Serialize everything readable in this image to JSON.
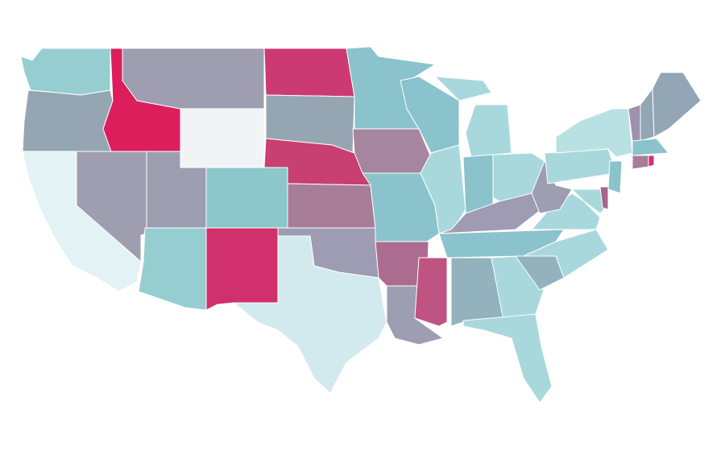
{
  "map": {
    "regions": [
      {
        "color": "#96cdd1"
      },
      {
        "color": "#95a6b2"
      },
      {
        "color": "#e3f3f5"
      },
      {
        "color": "#9e9eb0"
      },
      {
        "color": "#dc1e5c"
      },
      {
        "color": "#9e9eb0"
      },
      {
        "color": "#f2f3f5"
      },
      {
        "color": "#9d9fb1"
      },
      {
        "color": "#96cdd1"
      },
      {
        "color": "#8bc7cb"
      },
      {
        "color": "#d0306c"
      },
      {
        "color": "#cb3a71"
      },
      {
        "color": "#96a5b2"
      },
      {
        "color": "#c7406f"
      },
      {
        "color": "#a77d98"
      },
      {
        "color": "#9e9cb2"
      },
      {
        "color": "#d2eaed"
      },
      {
        "color": "#8ac3cc"
      },
      {
        "color": "#a6869f"
      },
      {
        "color": "#8ac3cc"
      },
      {
        "color": "#ac6c90"
      },
      {
        "color": "#9e9eb2"
      },
      {
        "color": "#bf5381"
      },
      {
        "color": "#8ac3cc"
      },
      {
        "color": "#a9d8dc"
      },
      {
        "color": "#a9d8dc"
      },
      {
        "color": "#8ac3cc"
      },
      {
        "color": "#a9d8dc"
      },
      {
        "color": "#9e9bb3"
      },
      {
        "color": "#8ac3cc"
      },
      {
        "color": "#92b3be"
      },
      {
        "color": "#a9d8dc"
      },
      {
        "color": "#a9d8dc"
      },
      {
        "color": "#92b3be"
      },
      {
        "color": "#a9d8dc"
      },
      {
        "color": "#a9d8dc"
      },
      {
        "color": "#9e9eb2"
      },
      {
        "color": "#a9d8dc"
      },
      {
        "color": "#b9e1e3"
      },
      {
        "color": "#9e92ad"
      },
      {
        "color": "#92a6b6"
      },
      {
        "color": "#92a6b6"
      },
      {
        "color": "#8ac3cc"
      },
      {
        "color": "#a77d98"
      },
      {
        "color": "#d2306c"
      },
      {
        "color": "#8ac3cc"
      },
      {
        "color": "#a9d8dc"
      },
      {
        "color": "#a6678e"
      }
    ]
  }
}
